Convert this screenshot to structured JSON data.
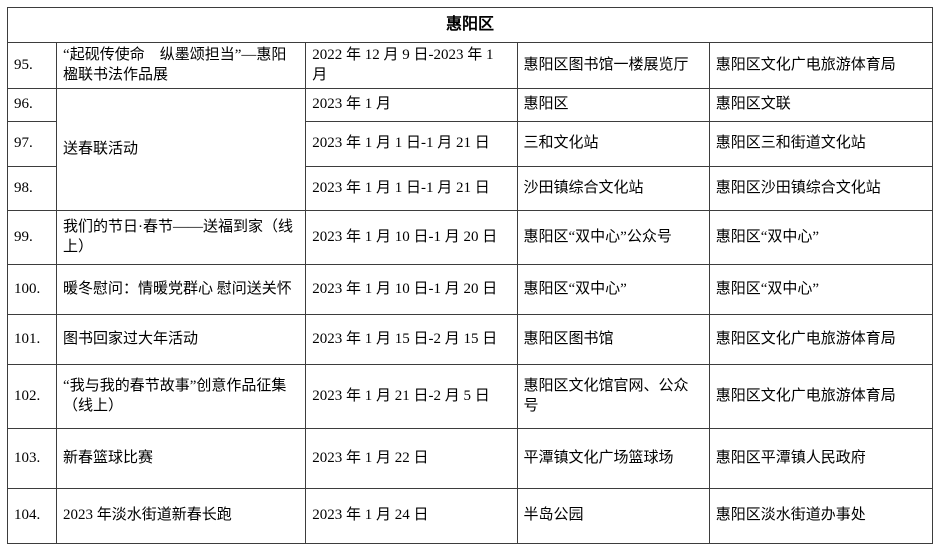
{
  "table": {
    "title": "惠阳区",
    "rows": [
      {
        "no": "95.",
        "activity": "“起砚传使命　纵墨颂担当”—惠阳楹联书法作品展",
        "date": "2022 年 12 月 9 日-2023 年 1 月",
        "location": "惠阳区图书馆一楼展览厅",
        "organizer": "惠阳区文化广电旅游体育局"
      },
      {
        "no": "96.",
        "activity": "送春联活动",
        "activity_rowspan": 3,
        "date": "2023 年 1 月",
        "location": "惠阳区",
        "organizer": "惠阳区文联"
      },
      {
        "no": "97.",
        "date": "2023 年 1 月 1 日-1 月 21 日",
        "location": "三和文化站",
        "organizer": "惠阳区三和街道文化站"
      },
      {
        "no": "98.",
        "date": "2023 年 1 月 1 日-1 月 21 日",
        "location": "沙田镇综合文化站",
        "organizer": "惠阳区沙田镇综合文化站"
      },
      {
        "no": "99.",
        "activity": "我们的节日·春节——送福到家（线上）",
        "date": "2023 年 1 月 10 日-1 月 20 日",
        "location": "惠阳区“双中心”公众号",
        "organizer": "惠阳区“双中心”"
      },
      {
        "no": "100.",
        "activity": "暖冬慰问：情暖党群心 慰问送关怀",
        "date": "2023 年 1 月 10 日-1 月 20 日",
        "location": "惠阳区“双中心”",
        "organizer": "惠阳区“双中心”"
      },
      {
        "no": "101.",
        "activity": "图书回家过大年活动",
        "date": "2023 年 1 月 15 日-2 月 15 日",
        "location": "惠阳区图书馆",
        "organizer": "惠阳区文化广电旅游体育局"
      },
      {
        "no": "102.",
        "activity": "“我与我的春节故事”创意作品征集（线上）",
        "date": "2023 年 1 月 21 日-2 月 5 日",
        "location": "惠阳区文化馆官网、公众号",
        "organizer": "惠阳区文化广电旅游体育局"
      },
      {
        "no": "103.",
        "activity": "新春篮球比赛",
        "date": "2023 年 1 月 22 日",
        "location": "平潭镇文化广场篮球场",
        "organizer": "惠阳区平潭镇人民政府"
      },
      {
        "no": "104.",
        "activity": "2023 年淡水街道新春长跑",
        "date": "2023 年 1 月 24 日",
        "location": "半岛公园",
        "organizer": "惠阳区淡水街道办事处"
      }
    ]
  }
}
